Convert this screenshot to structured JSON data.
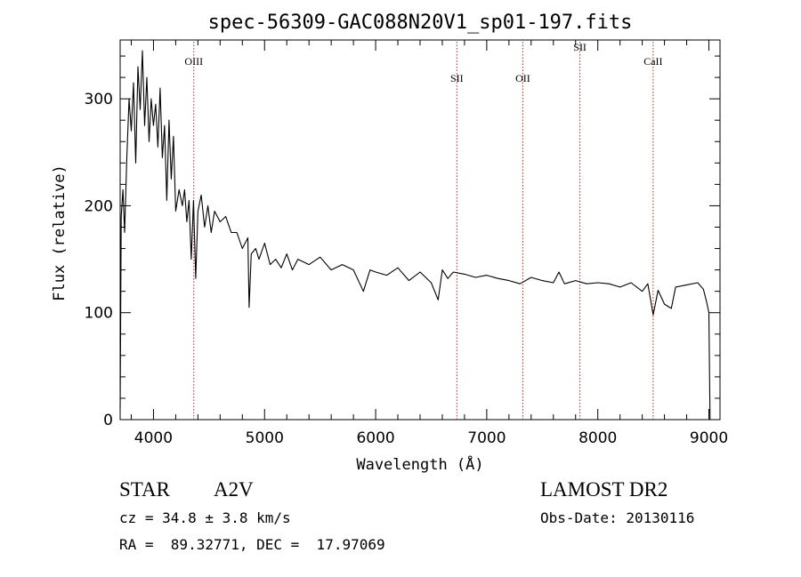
{
  "chart_data": {
    "type": "line",
    "title": "spec-56309-GAC088N20V1_sp01-197.fits",
    "xlabel": "Wavelength (Å)",
    "ylabel": "Flux (relative)",
    "xlim": [
      3700,
      9100
    ],
    "ylim": [
      0,
      355
    ],
    "x_ticks": [
      4000,
      5000,
      6000,
      7000,
      8000,
      9000
    ],
    "y_ticks": [
      0,
      100,
      200,
      300
    ],
    "grid": false,
    "line_color": "#000000",
    "marker_color": "#b22222",
    "series": [
      {
        "x": [
          3700,
          3710,
          3725,
          3740,
          3760,
          3780,
          3800,
          3820,
          3840,
          3860,
          3880,
          3900,
          3920,
          3940,
          3960,
          3980,
          4000,
          4020,
          4040,
          4060,
          4080,
          4100,
          4120,
          4140,
          4160,
          4180,
          4200,
          4230,
          4260,
          4280,
          4300,
          4320,
          4340,
          4360,
          4380,
          4400,
          4430,
          4460,
          4490,
          4520,
          4550,
          4600,
          4650,
          4700,
          4750,
          4800,
          4850,
          4861,
          4880,
          4920,
          4950,
          5000,
          5050,
          5100,
          5150,
          5200,
          5250,
          5300,
          5400,
          5500,
          5600,
          5700,
          5800,
          5890,
          5950,
          6000,
          6100,
          6200,
          6300,
          6400,
          6500,
          6563,
          6600,
          6650,
          6700,
          6800,
          6900,
          7000,
          7100,
          7200,
          7300,
          7400,
          7500,
          7600,
          7650,
          7700,
          7800,
          7900,
          8000,
          8100,
          8200,
          8300,
          8400,
          8450,
          8498,
          8542,
          8600,
          8662,
          8700,
          8800,
          8900,
          8950,
          8980,
          9000,
          9010
        ],
        "y": [
          10,
          190,
          215,
          175,
          245,
          300,
          270,
          315,
          240,
          330,
          290,
          345,
          275,
          320,
          260,
          300,
          275,
          295,
          255,
          310,
          245,
          275,
          205,
          280,
          225,
          265,
          195,
          215,
          200,
          215,
          185,
          205,
          150,
          205,
          132,
          195,
          210,
          180,
          200,
          175,
          195,
          185,
          190,
          175,
          175,
          160,
          170,
          105,
          155,
          160,
          150,
          165,
          145,
          150,
          142,
          155,
          140,
          150,
          145,
          152,
          140,
          145,
          140,
          120,
          140,
          138,
          135,
          142,
          130,
          138,
          128,
          112,
          140,
          132,
          138,
          136,
          133,
          135,
          132,
          130,
          127,
          133,
          130,
          128,
          138,
          127,
          130,
          127,
          128,
          127,
          124,
          128,
          120,
          127,
          98,
          121,
          108,
          104,
          124,
          126,
          128,
          122,
          110,
          100,
          0
        ]
      }
    ],
    "lines": [
      {
        "label": "OIII",
        "wavelength": 4363
      },
      {
        "label": "SII",
        "wavelength": 6731
      },
      {
        "label": "OII",
        "wavelength": 7325
      },
      {
        "label": "SII",
        "wavelength": 7839
      },
      {
        "label": "CaII",
        "wavelength": 8498
      }
    ]
  },
  "info": {
    "object_type": "STAR",
    "subclass": "A2V",
    "survey": "LAMOST DR2",
    "redshift": "cz = 34.8 ± 3.8 km/s",
    "obs_date": "Obs-Date: 20130116",
    "coords": "RA =  89.32771, DEC =  17.97069"
  }
}
